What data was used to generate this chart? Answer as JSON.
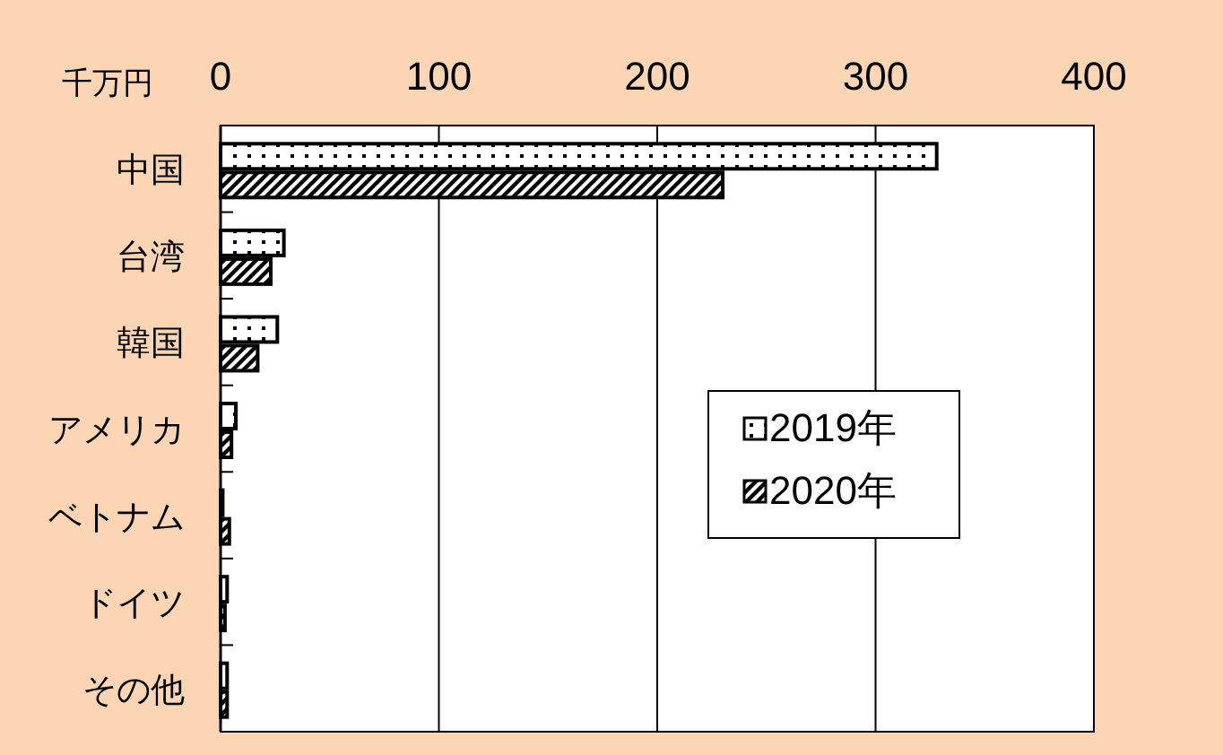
{
  "chart_data": {
    "type": "bar",
    "orientation": "horizontal",
    "xlabel": "千万円",
    "categories": [
      "中国",
      "台湾",
      "韓国",
      "アメリカ",
      "ベトナム",
      "ドイツ",
      "その他"
    ],
    "series": [
      {
        "name": "2019年",
        "color": "#000000",
        "values": [
          328,
          29,
          26,
          7,
          1,
          3,
          3
        ]
      },
      {
        "name": "2020年",
        "color": "#000000",
        "values": [
          230,
          23,
          17,
          5,
          4,
          2,
          3
        ]
      }
    ],
    "xlim": [
      0,
      400
    ],
    "xticks": [
      0,
      100,
      200,
      300,
      400
    ],
    "grid": "x",
    "legend": "right"
  }
}
